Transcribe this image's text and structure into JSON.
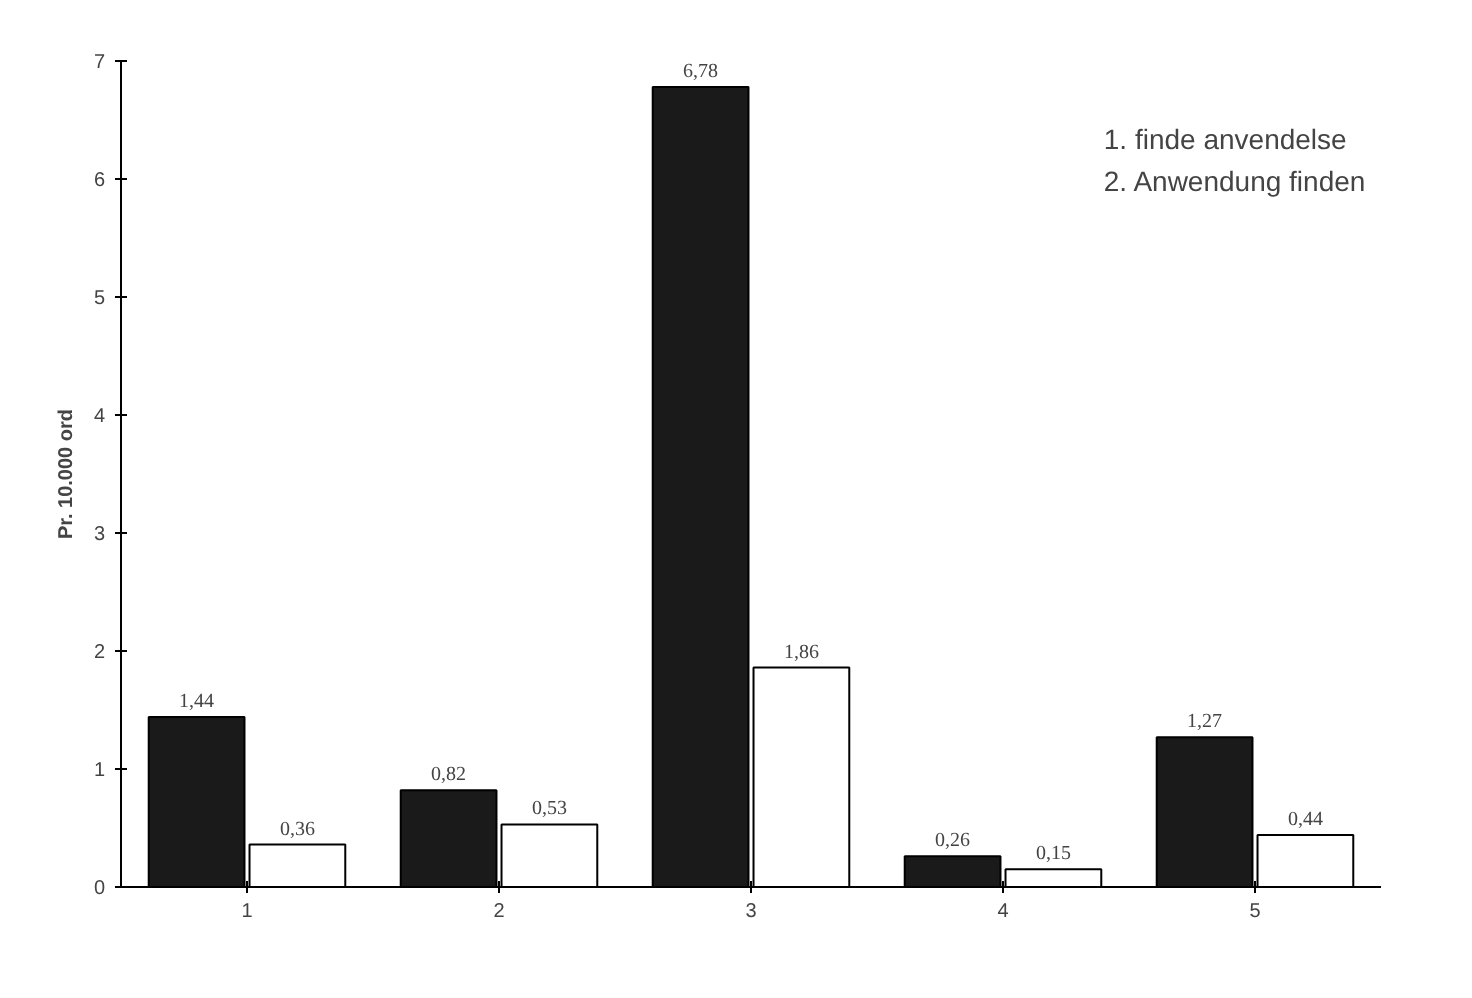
{
  "chart_data": {
    "type": "bar",
    "ylabel": "Pr. 10.000 ord",
    "categories": [
      "1",
      "2",
      "3",
      "4",
      "5"
    ],
    "series": [
      {
        "color": "#1a1a1a",
        "values": [
          1.44,
          0.82,
          6.78,
          0.26,
          1.27
        ],
        "value_labels": [
          "1,44",
          "0,82",
          "6,78",
          "0,26",
          "1,27"
        ]
      },
      {
        "color": "#ffffff",
        "values": [
          0.36,
          0.53,
          1.86,
          0.15,
          0.44
        ],
        "value_labels": [
          "0,36",
          "0,53",
          "1,86",
          "0,15",
          "0,44"
        ]
      }
    ],
    "ylim": [
      0,
      7
    ],
    "yticks": [
      0,
      1,
      2,
      3,
      4,
      5,
      6,
      7
    ],
    "annotations": [
      "1. finde anvendelse",
      "2. Anwendung finden"
    ]
  }
}
